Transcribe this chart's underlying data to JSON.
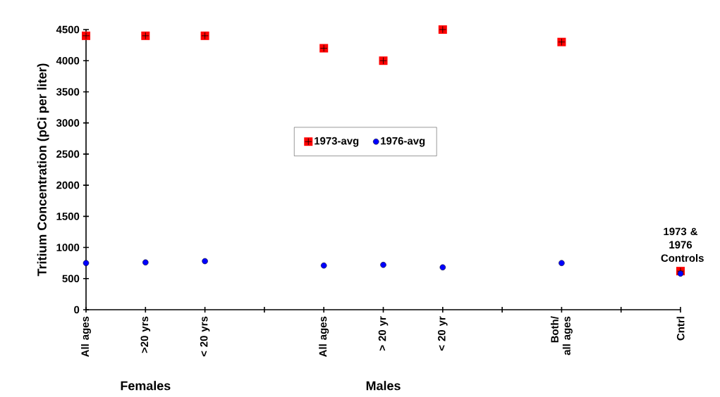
{
  "chart_data": {
    "type": "scatter",
    "ylabel": "Tritium Concentration (pCi per liter)",
    "categories": [
      "All ages",
      ">20 yrs",
      "< 20 yrs",
      null,
      "All ages",
      "> 20 yr",
      "< 20 yr",
      null,
      "Both/ all ages",
      null,
      "Cntrl"
    ],
    "series": [
      {
        "name": "1973-avg",
        "color": "#ff0000",
        "marker": "square",
        "values": [
          4400,
          4400,
          4400,
          null,
          4200,
          4000,
          4500,
          null,
          4300,
          null,
          620
        ]
      },
      {
        "name": "1976-avg",
        "color": "#0000ff",
        "marker": "circle",
        "values": [
          750,
          760,
          780,
          null,
          710,
          720,
          680,
          null,
          750,
          null,
          580
        ]
      }
    ],
    "ylim": [
      0,
      4500
    ],
    "yticks": [
      0,
      500,
      1000,
      1500,
      2000,
      2500,
      3000,
      3500,
      4000,
      4500
    ],
    "legend": "center",
    "grid": false,
    "annotations": [
      "Females",
      "Males",
      {
        "text": "1973 & 1976 Controls",
        "x": "Cntrl",
        "y": 620
      }
    ]
  }
}
